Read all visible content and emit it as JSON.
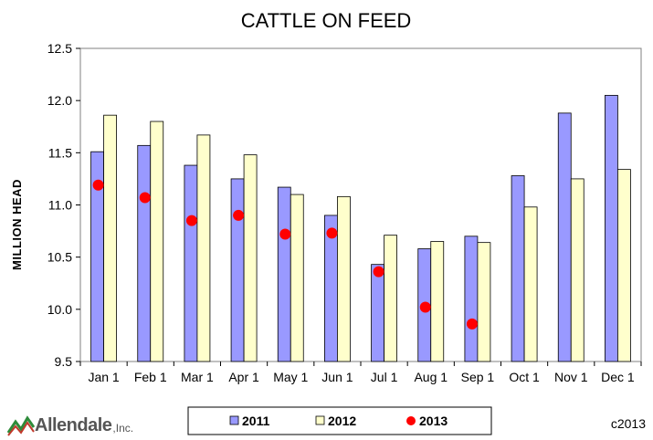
{
  "chart_data": {
    "type": "bar",
    "title": "CATTLE ON FEED",
    "ylabel": "MILLION HEAD",
    "xlabel": "",
    "ylim": [
      9.5,
      12.5
    ],
    "yticks": [
      "9.5",
      "10.0",
      "10.5",
      "11.0",
      "11.5",
      "12.0",
      "12.5"
    ],
    "grid": false,
    "legend_position": "bottom",
    "categories": [
      "Jan 1",
      "Feb 1",
      "Mar 1",
      "Apr 1",
      "May 1",
      "Jun 1",
      "Jul 1",
      "Aug 1",
      "Sep 1",
      "Oct 1",
      "Nov 1",
      "Dec 1"
    ],
    "series": [
      {
        "name": "2011",
        "kind": "bar",
        "color": "#9999ff",
        "values": [
          11.51,
          11.57,
          11.38,
          11.25,
          11.17,
          10.9,
          10.43,
          10.58,
          10.7,
          11.28,
          11.88,
          12.05
        ]
      },
      {
        "name": "2012",
        "kind": "bar",
        "color": "#ffffcc",
        "values": [
          11.86,
          11.8,
          11.67,
          11.48,
          11.1,
          11.08,
          10.71,
          10.65,
          10.64,
          10.98,
          11.25,
          11.34
        ]
      },
      {
        "name": "2013",
        "kind": "marker",
        "color": "#ff0000",
        "values": [
          11.19,
          11.07,
          10.85,
          10.9,
          10.72,
          10.73,
          10.36,
          10.02,
          9.86,
          null,
          null,
          null
        ]
      }
    ]
  },
  "branding": {
    "logo_main": "Allendale",
    "logo_sub": ",Inc.",
    "copyright": "c2013"
  }
}
